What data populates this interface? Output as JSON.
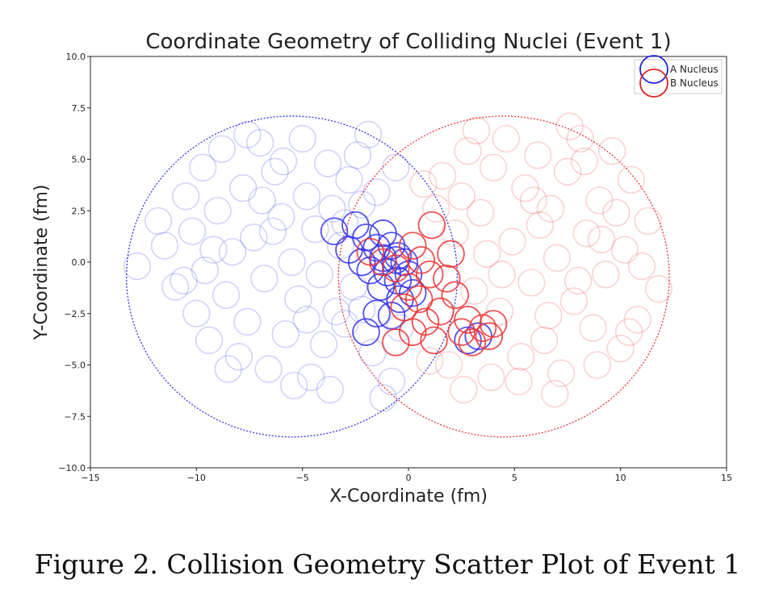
{
  "chart_data": {
    "type": "scatter",
    "title": "Coordinate Geometry of Colliding Nuclei (Event 1)",
    "xlabel": "X-Coordinate (fm)",
    "ylabel": "Y-Coordinate (fm)",
    "xlim": [
      -15,
      15
    ],
    "ylim": [
      -10,
      10
    ],
    "x_ticks": [
      "−15",
      "−10",
      "−5",
      "0",
      "5",
      "10",
      "15"
    ],
    "x_tick_values": [
      -15,
      -10,
      -5,
      0,
      5,
      10,
      15
    ],
    "y_ticks": [
      "10.0",
      "7.5",
      "5.0",
      "2.5",
      "0.0",
      "−2.5",
      "−5.0",
      "−7.5",
      "−10.0"
    ],
    "y_tick_values": [
      10,
      7.5,
      5,
      2.5,
      0,
      -2.5,
      -5,
      -7.5,
      -10
    ],
    "nucleon_radius": 0.55,
    "legend": {
      "placement": "top-right",
      "entries": [
        {
          "label": "A Nucleus",
          "color": "#2222dd"
        },
        {
          "label": "B Nucleus",
          "color": "#dd2222"
        }
      ]
    },
    "nuclei": [
      {
        "name": "A Nucleus",
        "center": [
          -5.5,
          -0.7
        ],
        "radius": 7.8,
        "color": "#3333ee",
        "participants": [
          [
            -2.8,
            0.6
          ],
          [
            -2.0,
            1.2
          ],
          [
            -1.5,
            0.7
          ],
          [
            -1.2,
            0.2
          ],
          [
            -0.8,
            0.8
          ],
          [
            -0.5,
            0.3
          ],
          [
            -2.2,
            0.0
          ],
          [
            -1.8,
            -0.4
          ],
          [
            -1.0,
            -0.5
          ],
          [
            -0.5,
            -0.9
          ],
          [
            -0.2,
            0.0
          ],
          [
            0.0,
            -0.6
          ],
          [
            -1.3,
            -1.2
          ],
          [
            -0.4,
            -1.8
          ],
          [
            0.2,
            -1.5
          ],
          [
            -0.8,
            -2.6
          ],
          [
            -1.5,
            -2.5
          ],
          [
            -2.0,
            -3.4
          ],
          [
            -3.5,
            1.5
          ],
          [
            -2.5,
            1.8
          ],
          [
            -1.2,
            1.4
          ],
          [
            2.8,
            -3.8
          ],
          [
            3.3,
            -3.6
          ],
          [
            -0.6,
            0.1
          ]
        ],
        "spectators": [
          [
            -12.8,
            -0.2
          ],
          [
            -11.5,
            0.8
          ],
          [
            -11.0,
            -1.2
          ],
          [
            -10.5,
            3.2
          ],
          [
            -10.2,
            1.5
          ],
          [
            -10.0,
            -2.5
          ],
          [
            -9.7,
            4.6
          ],
          [
            -9.6,
            -0.4
          ],
          [
            -9.4,
            -3.8
          ],
          [
            -9.0,
            2.5
          ],
          [
            -8.8,
            5.5
          ],
          [
            -8.6,
            -1.6
          ],
          [
            -8.3,
            0.5
          ],
          [
            -8.0,
            -4.6
          ],
          [
            -7.8,
            3.6
          ],
          [
            -7.6,
            -2.9
          ],
          [
            -7.3,
            1.2
          ],
          [
            -7.0,
            5.8
          ],
          [
            -6.8,
            -0.8
          ],
          [
            -6.6,
            -5.2
          ],
          [
            -6.3,
            4.4
          ],
          [
            -6.0,
            2.2
          ],
          [
            -5.8,
            -3.5
          ],
          [
            -5.5,
            0.0
          ],
          [
            -5.2,
            -1.8
          ],
          [
            -5.0,
            6.0
          ],
          [
            -4.8,
            3.2
          ],
          [
            -4.6,
            -5.6
          ],
          [
            -4.4,
            1.6
          ],
          [
            -4.2,
            -0.6
          ],
          [
            -4.0,
            -4.0
          ],
          [
            -3.8,
            4.8
          ],
          [
            -3.6,
            2.6
          ],
          [
            -3.4,
            -2.4
          ],
          [
            -3.2,
            0.8
          ],
          [
            -3.0,
            -3.0
          ],
          [
            -2.8,
            4.0
          ],
          [
            -2.6,
            -1.2
          ],
          [
            -2.4,
            5.2
          ],
          [
            -2.2,
            2.8
          ],
          [
            -1.9,
            6.2
          ],
          [
            -1.7,
            -4.4
          ],
          [
            -1.5,
            3.4
          ],
          [
            -1.2,
            -6.6
          ],
          [
            -0.8,
            -5.8
          ],
          [
            -0.6,
            4.6
          ],
          [
            -0.4,
            -3.2
          ],
          [
            -5.4,
            -6.0
          ],
          [
            -6.4,
            1.5
          ],
          [
            -9.2,
            0.6
          ],
          [
            -8.5,
            -5.2
          ],
          [
            -4.8,
            -2.8
          ],
          [
            -7.6,
            6.2
          ],
          [
            -3.7,
            -6.2
          ],
          [
            -10.6,
            -0.9
          ],
          [
            -11.8,
            2.0
          ],
          [
            -6.9,
            3.0
          ],
          [
            -5.9,
            4.9
          ],
          [
            -3.0,
            1.9
          ],
          [
            -2.2,
            -2.3
          ]
        ]
      },
      {
        "name": "B Nucleus",
        "center": [
          4.5,
          -0.7
        ],
        "radius": 7.8,
        "color": "#ee3333",
        "participants": [
          [
            -1.8,
            0.5
          ],
          [
            -1.2,
            0.0
          ],
          [
            -0.6,
            -0.3
          ],
          [
            0.2,
            0.8
          ],
          [
            0.6,
            0.1
          ],
          [
            1.1,
            1.8
          ],
          [
            0.0,
            -1.2
          ],
          [
            0.5,
            -1.8
          ],
          [
            1.0,
            -0.6
          ],
          [
            1.8,
            -0.8
          ],
          [
            2.2,
            -1.6
          ],
          [
            1.5,
            -2.4
          ],
          [
            0.8,
            -2.9
          ],
          [
            0.2,
            -3.4
          ],
          [
            -0.6,
            -3.9
          ],
          [
            2.5,
            -3.4
          ],
          [
            3.0,
            -3.9
          ],
          [
            3.5,
            -3.2
          ],
          [
            3.8,
            -3.6
          ],
          [
            4.0,
            -3.0
          ],
          [
            2.0,
            0.4
          ],
          [
            -0.2,
            -2.2
          ],
          [
            1.2,
            -3.8
          ],
          [
            2.8,
            -2.8
          ]
        ],
        "spectators": [
          [
            11.8,
            -1.3
          ],
          [
            11.3,
            2.0
          ],
          [
            10.8,
            -2.8
          ],
          [
            10.5,
            4.0
          ],
          [
            10.2,
            0.6
          ],
          [
            10.0,
            -4.2
          ],
          [
            9.6,
            5.4
          ],
          [
            9.3,
            -0.6
          ],
          [
            9.0,
            3.0
          ],
          [
            8.7,
            -3.2
          ],
          [
            8.4,
            1.4
          ],
          [
            8.1,
            6.0
          ],
          [
            7.8,
            -1.9
          ],
          [
            7.5,
            4.4
          ],
          [
            7.2,
            -5.4
          ],
          [
            7.0,
            0.2
          ],
          [
            6.7,
            2.6
          ],
          [
            6.4,
            -3.8
          ],
          [
            6.1,
            5.2
          ],
          [
            5.8,
            -1.0
          ],
          [
            5.5,
            3.6
          ],
          [
            5.2,
            -5.8
          ],
          [
            4.9,
            1.0
          ],
          [
            4.6,
            6.0
          ],
          [
            4.3,
            -2.4
          ],
          [
            4.0,
            4.6
          ],
          [
            3.7,
            0.4
          ],
          [
            3.4,
            2.4
          ],
          [
            3.1,
            -1.4
          ],
          [
            2.8,
            5.4
          ],
          [
            2.5,
            3.2
          ],
          [
            2.2,
            1.4
          ],
          [
            1.9,
            -5.0
          ],
          [
            1.6,
            4.2
          ],
          [
            1.3,
            2.6
          ],
          [
            1.0,
            -4.8
          ],
          [
            0.7,
            3.8
          ],
          [
            8.9,
            -5.0
          ],
          [
            9.8,
            2.4
          ],
          [
            6.9,
            -6.4
          ],
          [
            5.3,
            -4.6
          ],
          [
            3.9,
            -5.6
          ],
          [
            7.6,
            6.6
          ],
          [
            8.3,
            4.9
          ],
          [
            11.0,
            -0.2
          ],
          [
            6.2,
            1.8
          ],
          [
            4.4,
            -0.6
          ],
          [
            9.1,
            1.1
          ],
          [
            5.9,
            3.0
          ],
          [
            10.4,
            -3.4
          ],
          [
            2.6,
            -6.2
          ],
          [
            3.2,
            6.4
          ],
          [
            8.0,
            -0.9
          ],
          [
            6.6,
            -2.6
          ]
        ]
      }
    ]
  },
  "caption": "Figure 2.  Collision Geometry Scatter Plot of Event 1"
}
